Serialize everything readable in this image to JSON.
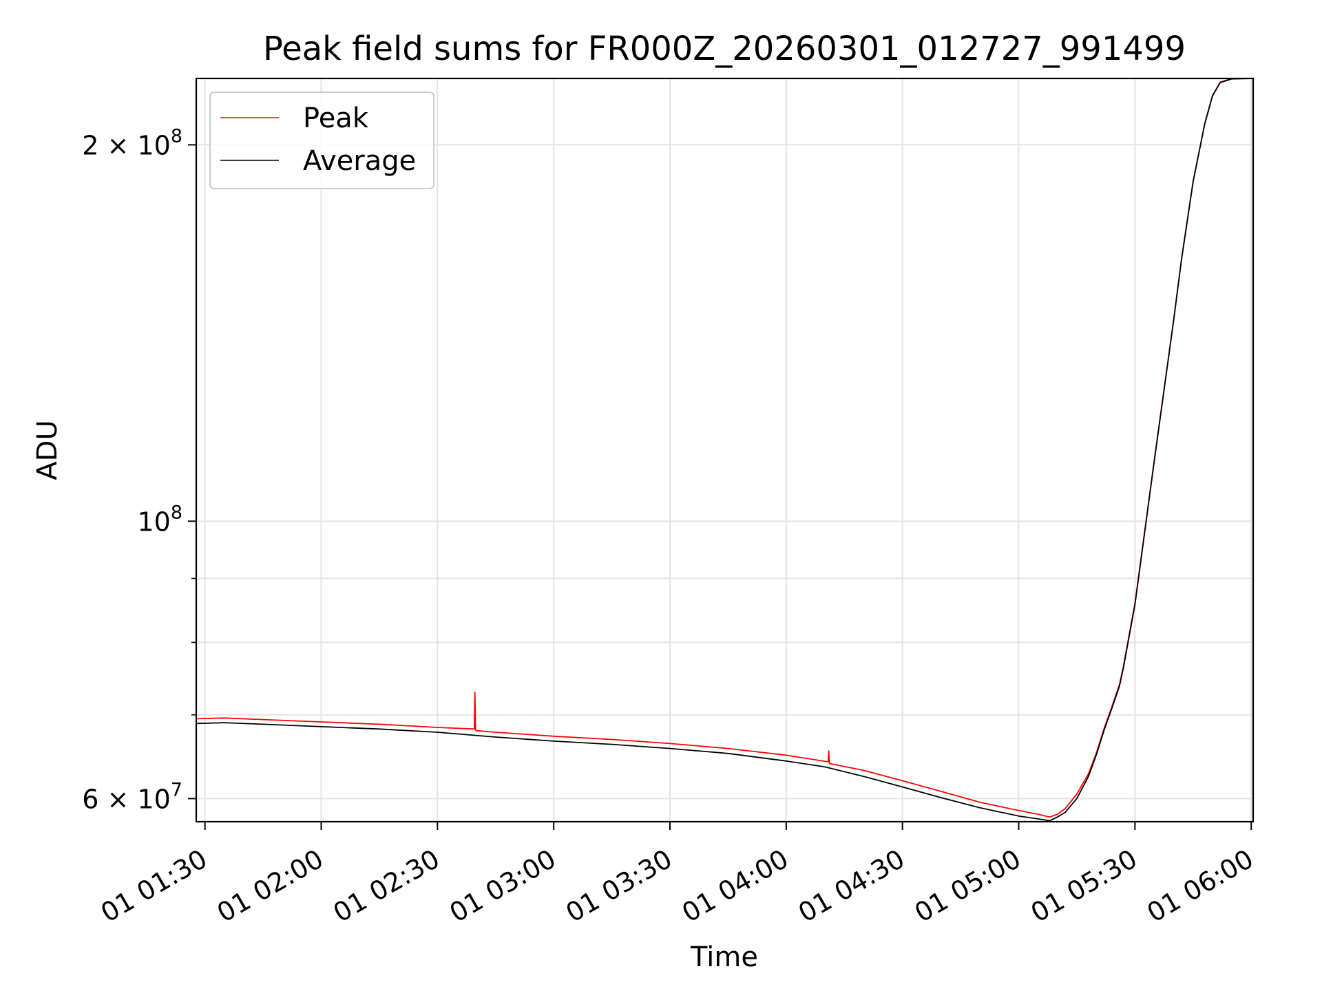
{
  "chart_data": {
    "type": "line",
    "title": "Peak field sums for FR000Z_20260301_012727_991499",
    "xlabel": "Time",
    "ylabel": "ADU",
    "y_scale": "log",
    "ylim": [
      57500000,
      226000000
    ],
    "xlim": [
      "01 01:27:45",
      "01 06:00:30"
    ],
    "grid": true,
    "legend_position": "top-left",
    "x_ticks": [
      {
        "value": "01 01:30:00",
        "label": "01 01:30"
      },
      {
        "value": "01 02:00:00",
        "label": "01 02:00"
      },
      {
        "value": "01 02:30:00",
        "label": "01 02:30"
      },
      {
        "value": "01 03:00:00",
        "label": "01 03:00"
      },
      {
        "value": "01 03:30:00",
        "label": "01 03:30"
      },
      {
        "value": "01 04:00:00",
        "label": "01 04:00"
      },
      {
        "value": "01 04:30:00",
        "label": "01 04:30"
      },
      {
        "value": "01 05:00:00",
        "label": "01 05:00"
      },
      {
        "value": "01 05:30:00",
        "label": "01 05:30"
      },
      {
        "value": "01 06:00:00",
        "label": "01 06:00"
      }
    ],
    "y_ticks_major": [
      {
        "value": 60000000,
        "base": "6 × 10",
        "exp": "7"
      },
      {
        "value": 100000000,
        "base": "10",
        "exp": "8"
      },
      {
        "value": 200000000,
        "base": "2 × 10",
        "exp": "8"
      }
    ],
    "y_ticks_minor": [
      70000000,
      80000000,
      90000000
    ],
    "series": [
      {
        "name": "Peak",
        "color": "#ff0000",
        "x": [
          "01 01:27:45",
          "01 01:35:00",
          "01 01:45:00",
          "01 02:00:00",
          "01 02:15:00",
          "01 02:30:00",
          "01 02:39:30",
          "01 02:39:40",
          "01 02:39:50",
          "01 02:40:00",
          "01 02:45:00",
          "01 03:00:00",
          "01 03:15:00",
          "01 03:30:00",
          "01 03:45:00",
          "01 04:00:00",
          "01 04:10:50",
          "01 04:11:00",
          "01 04:11:10",
          "01 04:20:00",
          "01 04:30:00",
          "01 04:40:00",
          "01 04:50:00",
          "01 05:00:00",
          "01 05:05:00",
          "01 05:08:00",
          "01 05:10:00",
          "01 05:12:00",
          "01 05:15:00",
          "01 05:18:00",
          "01 05:20:00",
          "01 05:22:00",
          "01 05:24:00",
          "01 05:25:00",
          "01 05:26:00",
          "01 05:27:00",
          "01 05:30:00",
          "01 05:35:00",
          "01 05:40:00",
          "01 05:42:00",
          "01 05:45:00",
          "01 05:48:00",
          "01 05:50:00",
          "01 05:52:00",
          "01 05:55:00",
          "01 06:00:30"
        ],
        "y": [
          69500000,
          69600000,
          69400000,
          69100000,
          68800000,
          68400000,
          68200000,
          73000000,
          68100000,
          68000000,
          67800000,
          67300000,
          66900000,
          66400000,
          65800000,
          65000000,
          64200000,
          65500000,
          64000000,
          63200000,
          62000000,
          60800000,
          59600000,
          58700000,
          58300000,
          58000000,
          58300000,
          58900000,
          60500000,
          62800000,
          65200000,
          68200000,
          71000000,
          72500000,
          74000000,
          76500000,
          86000000,
          112000000,
          145000000,
          162000000,
          187000000,
          208000000,
          219000000,
          224500000,
          226000000,
          226000000
        ]
      },
      {
        "name": "Average",
        "color": "#000000",
        "x": [
          "01 01:27:45",
          "01 01:35:00",
          "01 01:45:00",
          "01 02:00:00",
          "01 02:15:00",
          "01 02:30:00",
          "01 02:45:00",
          "01 03:00:00",
          "01 03:15:00",
          "01 03:30:00",
          "01 03:45:00",
          "01 04:00:00",
          "01 04:10:00",
          "01 04:20:00",
          "01 04:30:00",
          "01 04:40:00",
          "01 04:50:00",
          "01 05:00:00",
          "01 05:05:00",
          "01 05:08:00",
          "01 05:10:00",
          "01 05:12:00",
          "01 05:15:00",
          "01 05:18:00",
          "01 05:20:00",
          "01 05:22:00",
          "01 05:24:00",
          "01 05:25:00",
          "01 05:26:00",
          "01 05:27:00",
          "01 05:30:00",
          "01 05:35:00",
          "01 05:40:00",
          "01 05:42:00",
          "01 05:45:00",
          "01 05:48:00",
          "01 05:50:00",
          "01 05:52:00",
          "01 05:55:00",
          "01 06:00:30"
        ],
        "y": [
          68900000,
          69000000,
          68800000,
          68500000,
          68200000,
          67800000,
          67200000,
          66700000,
          66300000,
          65800000,
          65200000,
          64300000,
          63600000,
          62500000,
          61300000,
          60100000,
          59000000,
          58100000,
          57800000,
          57600000,
          58000000,
          58500000,
          60000000,
          62500000,
          65000000,
          68000000,
          70800000,
          72300000,
          73800000,
          76300000,
          85800000,
          111800000,
          144800000,
          161800000,
          186800000,
          207800000,
          218800000,
          224300000,
          225800000,
          226000000
        ]
      }
    ]
  }
}
